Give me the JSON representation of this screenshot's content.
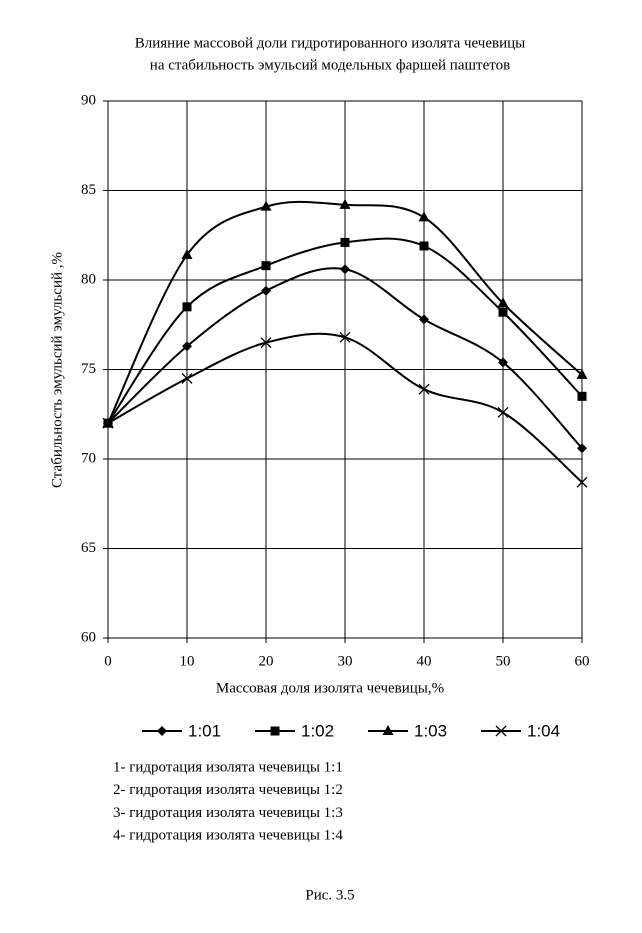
{
  "chart_data": {
    "type": "line",
    "title": [
      "Влияние массовой доли гидротированного изолята чечевицы",
      "на стабильность эмульсий модельных фаршей паштетов"
    ],
    "xlabel": "Массовая доля изолята чечевицы,%",
    "ylabel": "Стабильность эмульсий эмульсий ,%",
    "x": [
      0,
      10,
      20,
      30,
      40,
      50,
      60
    ],
    "series": [
      {
        "name": "1:01",
        "color": "#000000",
        "marker": "diamond",
        "values": [
          72,
          76.3,
          79.4,
          80.6,
          77.8,
          75.4,
          70.6
        ]
      },
      {
        "name": "1:02",
        "color": "#000000",
        "marker": "square",
        "values": [
          72,
          78.5,
          80.8,
          82.1,
          81.9,
          78.2,
          73.5
        ]
      },
      {
        "name": "1:03",
        "color": "#000000",
        "marker": "triangle",
        "values": [
          72,
          81.4,
          84.1,
          84.2,
          83.5,
          78.7,
          74.7
        ]
      },
      {
        "name": "1:04",
        "color": "#000000",
        "marker": "x",
        "values": [
          72,
          74.5,
          76.5,
          76.8,
          73.9,
          72.6,
          68.7
        ]
      }
    ],
    "xlim": [
      0,
      60
    ],
    "xticks": [
      0,
      10,
      20,
      30,
      40,
      50,
      60
    ],
    "ylim": [
      60,
      90
    ],
    "yticks": [
      60,
      65,
      70,
      75,
      80,
      85,
      90
    ],
    "grid": true,
    "legend": "bottom"
  },
  "notes": [
    "1- гидротация изолята чечевицы 1:1",
    "2- гидротация изолята чечевицы 1:2",
    "3- гидротация изолята чечевицы 1:3",
    "4- гидротация изолята чечевицы 1:4"
  ],
  "caption": "Рис. 3.5"
}
